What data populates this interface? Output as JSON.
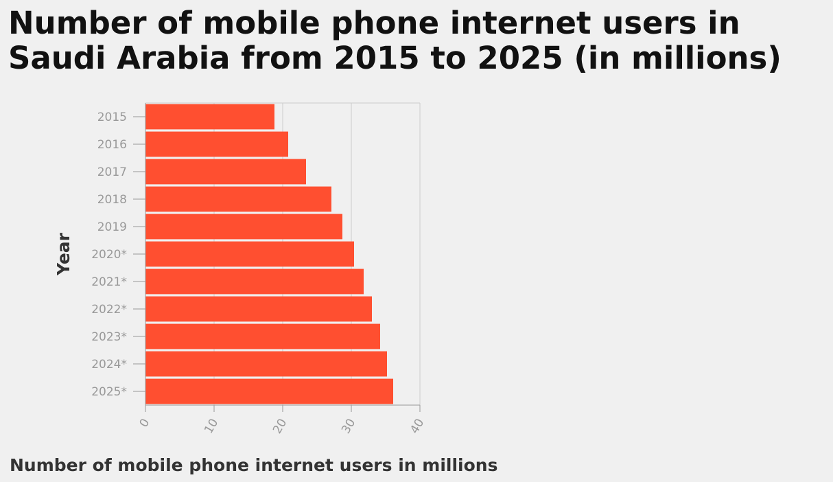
{
  "chart_data": {
    "type": "bar",
    "orientation": "horizontal",
    "title": "Number of mobile phone internet users in Saudi Arabia from 2015 to 2025 (in millions)",
    "xlabel": "Number of mobile phone internet users in millions",
    "ylabel": "Year",
    "categories": [
      "2015",
      "2016",
      "2017",
      "2018",
      "2019",
      "2020*",
      "2021*",
      "2022*",
      "2023*",
      "2024*",
      "2025*"
    ],
    "values": [
      18.8,
      20.8,
      23.4,
      27.1,
      28.7,
      30.4,
      31.8,
      33.0,
      34.2,
      35.2,
      36.1
    ],
    "xlim": [
      0,
      40
    ],
    "xticks": [
      "0",
      "10",
      "20",
      "30",
      "40"
    ],
    "grid": "vertical",
    "legend": "none",
    "bar_color": "#ff4f30",
    "grid_color": "#cccccc",
    "background": "#f0f0f0"
  }
}
